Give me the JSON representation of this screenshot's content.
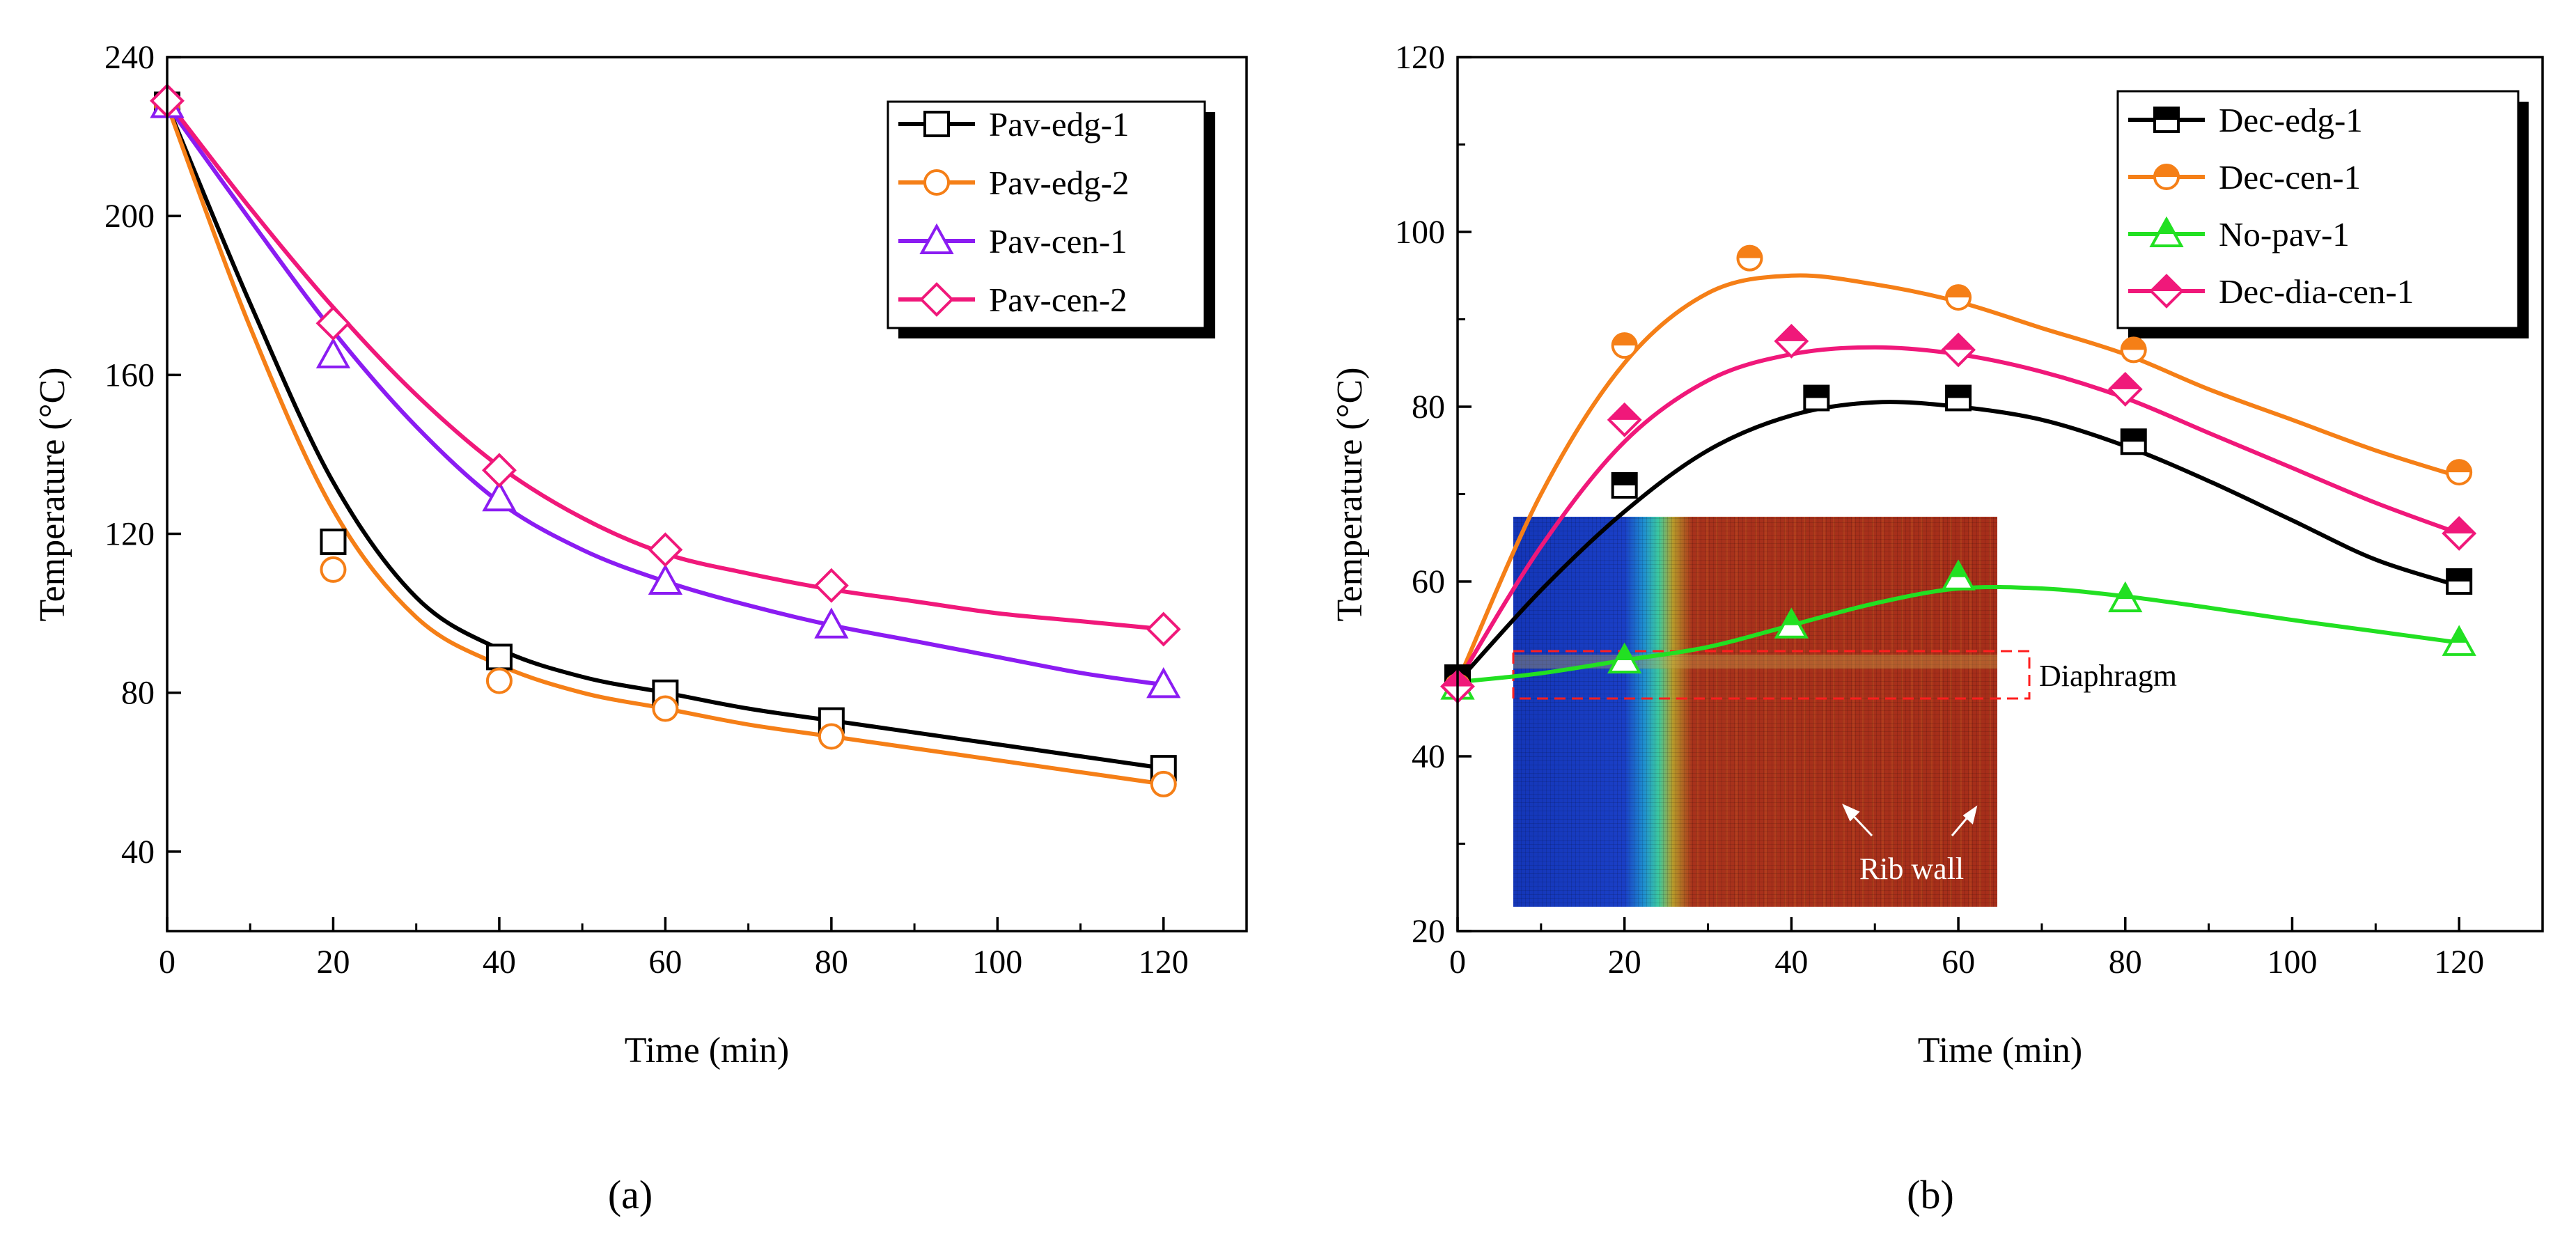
{
  "chart_data": [
    {
      "type": "line",
      "panel_label": "(a)",
      "xlabel": "Time (min)",
      "ylabel": "Temperature (°C)",
      "xlim": [
        0,
        130
      ],
      "ylim": [
        20,
        240
      ],
      "xticks": [
        0,
        20,
        40,
        60,
        80,
        100,
        120
      ],
      "yticks": [
        40,
        80,
        120,
        160,
        200,
        240
      ],
      "legend_position": "top-right",
      "series": [
        {
          "name": "Pav-edg-1",
          "color": "#000000",
          "marker": "square-open",
          "x": [
            0,
            20,
            40,
            60,
            80,
            120
          ],
          "y": [
            228,
            118,
            89,
            80,
            73,
            61
          ],
          "curve_x": [
            0,
            10,
            20,
            30,
            40,
            50,
            60,
            70,
            80,
            90,
            100,
            110,
            120
          ],
          "curve_y": [
            228,
            178,
            133,
            104,
            91,
            84,
            80,
            76,
            73,
            70,
            67,
            64,
            61
          ]
        },
        {
          "name": "Pav-edg-2",
          "color": "#F57F17",
          "marker": "circle-open",
          "x": [
            0,
            20,
            40,
            60,
            80,
            120
          ],
          "y": [
            228,
            111,
            83,
            76,
            69,
            57
          ],
          "curve_x": [
            0,
            10,
            20,
            30,
            40,
            50,
            60,
            70,
            80,
            90,
            100,
            110,
            120
          ],
          "curve_y": [
            228,
            172,
            126,
            99,
            87,
            80,
            76,
            72,
            69,
            66,
            63,
            60,
            57
          ]
        },
        {
          "name": "Pav-cen-1",
          "color": "#8B1CF2",
          "marker": "triangle-open",
          "x": [
            0,
            20,
            40,
            60,
            80,
            120
          ],
          "y": [
            228,
            165,
            129,
            108,
            97,
            82
          ],
          "curve_x": [
            0,
            10,
            20,
            30,
            40,
            50,
            60,
            70,
            80,
            90,
            100,
            110,
            120
          ],
          "curve_y": [
            228,
            199,
            171,
            147,
            128,
            116,
            108,
            102,
            97,
            93,
            89,
            85,
            82
          ]
        },
        {
          "name": "Pav-cen-2",
          "color": "#F0187A",
          "marker": "diamond-open",
          "x": [
            0,
            20,
            40,
            60,
            80,
            120
          ],
          "y": [
            229,
            173,
            136,
            116,
            107,
            96
          ],
          "curve_x": [
            0,
            10,
            20,
            30,
            40,
            50,
            60,
            70,
            80,
            90,
            100,
            110,
            120
          ],
          "curve_y": [
            229,
            202,
            177,
            155,
            137,
            124,
            115,
            110,
            106,
            103,
            100,
            98,
            96
          ]
        }
      ]
    },
    {
      "type": "line",
      "panel_label": "(b)",
      "xlabel": "Time (min)",
      "ylabel": "Temperature (°C)",
      "xlim": [
        0,
        130
      ],
      "ylim": [
        20,
        120
      ],
      "xticks": [
        0,
        20,
        40,
        60,
        80,
        100,
        120
      ],
      "yticks": [
        20,
        40,
        60,
        80,
        100,
        120
      ],
      "legend_position": "top-right",
      "inset_annotations": [
        "Diaphragm",
        "Rib wall"
      ],
      "series": [
        {
          "name": "Dec-edg-1",
          "color": "#000000",
          "marker": "square-half",
          "x": [
            0,
            20,
            43,
            60,
            81,
            120
          ],
          "y": [
            49,
            71,
            81,
            81,
            76,
            60
          ],
          "curve_x": [
            0,
            10,
            20,
            30,
            40,
            50,
            60,
            70,
            80,
            90,
            100,
            110,
            120
          ],
          "curve_y": [
            48.5,
            59,
            68,
            75,
            79,
            80.5,
            80,
            78.5,
            75.5,
            71.5,
            67,
            62.5,
            59.5
          ]
        },
        {
          "name": "Dec-cen-1",
          "color": "#F57F17",
          "marker": "circle-half",
          "x": [
            0,
            20,
            35,
            60,
            81,
            120
          ],
          "y": [
            48,
            87,
            97,
            92.5,
            86.5,
            72.5
          ],
          "curve_x": [
            0,
            10,
            20,
            30,
            40,
            50,
            60,
            70,
            80,
            90,
            100,
            110,
            120
          ],
          "curve_y": [
            48.5,
            70,
            85,
            93,
            95,
            94,
            92,
            89,
            86,
            82,
            78.5,
            75,
            72
          ]
        },
        {
          "name": "No-pav-1",
          "color": "#22E022",
          "marker": "triangle-half",
          "x": [
            0,
            20,
            40,
            60,
            80,
            120
          ],
          "y": [
            48,
            51,
            55,
            60.5,
            58,
            53
          ],
          "curve_x": [
            0,
            10,
            20,
            30,
            40,
            50,
            60,
            70,
            80,
            90,
            100,
            110,
            120
          ],
          "curve_y": [
            48.5,
            49.5,
            51,
            52.5,
            55,
            57.5,
            59.2,
            59.2,
            58.3,
            57,
            55.6,
            54.3,
            53
          ]
        },
        {
          "name": "Dec-dia-cen-1",
          "color": "#F0187A",
          "marker": "diamond-half",
          "x": [
            0,
            20,
            40,
            60,
            80,
            120
          ],
          "y": [
            48,
            78.5,
            87.5,
            86.5,
            82,
            65.5
          ],
          "curve_x": [
            0,
            10,
            20,
            30,
            40,
            50,
            60,
            70,
            80,
            90,
            100,
            110,
            120
          ],
          "curve_y": [
            48.5,
            64,
            76,
            83,
            86,
            86.8,
            86,
            84,
            81,
            77,
            73,
            69,
            65.5
          ]
        }
      ]
    }
  ]
}
